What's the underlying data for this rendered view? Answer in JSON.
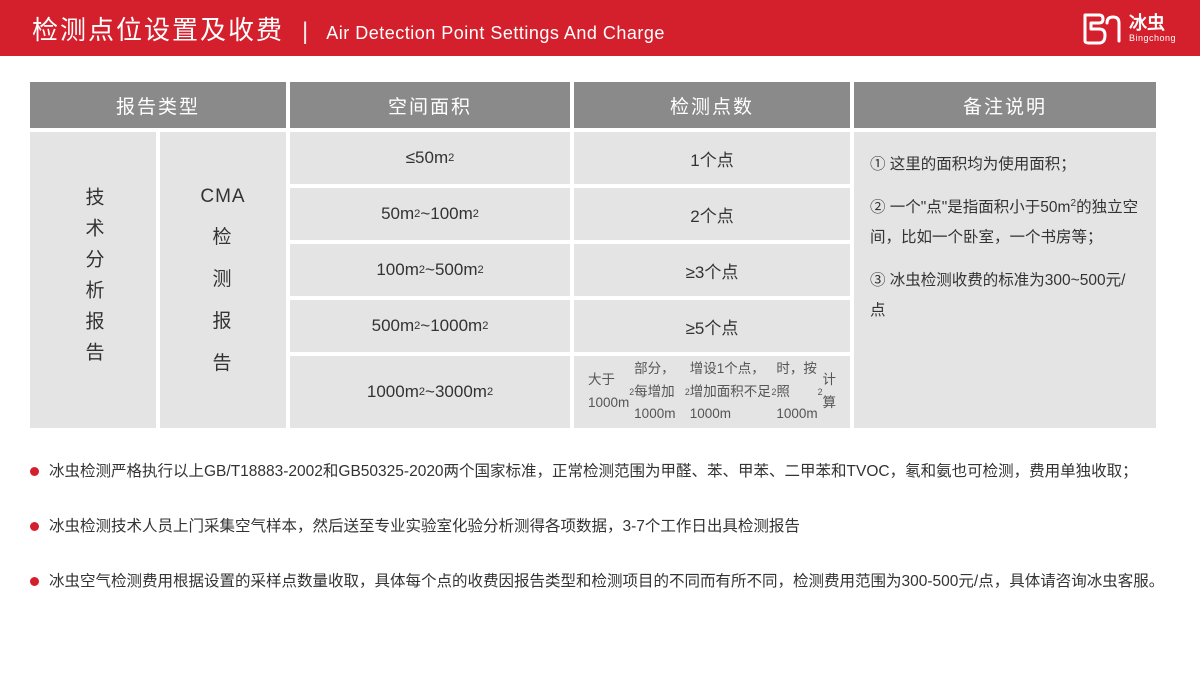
{
  "colors": {
    "brand_red": "#d41f2c",
    "header_gray": "#8a8a8a",
    "cell_gray": "#e4e4e4",
    "text_dark": "#333333",
    "text_muted": "#555555",
    "white": "#ffffff"
  },
  "header": {
    "title_cn": "检测点位设置及收费",
    "title_en": "Air Detection Point Settings And Charge",
    "logo_cn": "冰虫",
    "logo_en": "Bingchong"
  },
  "table": {
    "headers": {
      "report_type": "报告类型",
      "area": "空间面积",
      "points": "检测点数",
      "notes": "备注说明"
    },
    "report_types": {
      "tech": "技术分析报告",
      "cma_en": "CMA",
      "cma_cn": [
        "检",
        "测",
        "报",
        "告"
      ]
    },
    "rows": [
      {
        "area": "≤50m²",
        "points": "1个点"
      },
      {
        "area": "50m²~100m²",
        "points": "2个点"
      },
      {
        "area": "100m²~500m²",
        "points": "≥3个点"
      },
      {
        "area": "500m²~1000m²",
        "points": "≥5个点"
      },
      {
        "area": "1000m²~3000m²",
        "points": "大于1000m²部分，每增加1000m²增设1个点，增加面积不足1000m²时，按照1000m²计算"
      }
    ],
    "side_notes": [
      "① 这里的面积均为使用面积；",
      "② 一个\"点\"是指面积小于50㎡的独立空间，比如一个卧室，一个书房等；",
      "③ 冰虫检测收费的标准为300~500元/点"
    ]
  },
  "bullets": [
    "冰虫检测严格执行以上GB/T18883-2002和GB50325-2020两个国家标准，正常检测范围为甲醛、苯、甲苯、二甲苯和TVOC，氡和氨也可检测，费用单独收取；",
    "冰虫检测技术人员上门采集空气样本，然后送至专业实验室化验分析测得各项数据，3-7个工作日出具检测报告",
    "冰虫空气检测费用根据设置的采样点数量收取，具体每个点的收费因报告类型和检测项目的不同而有所不同，检测费用范围为300-500元/点，具体请咨询冰虫客服。"
  ]
}
